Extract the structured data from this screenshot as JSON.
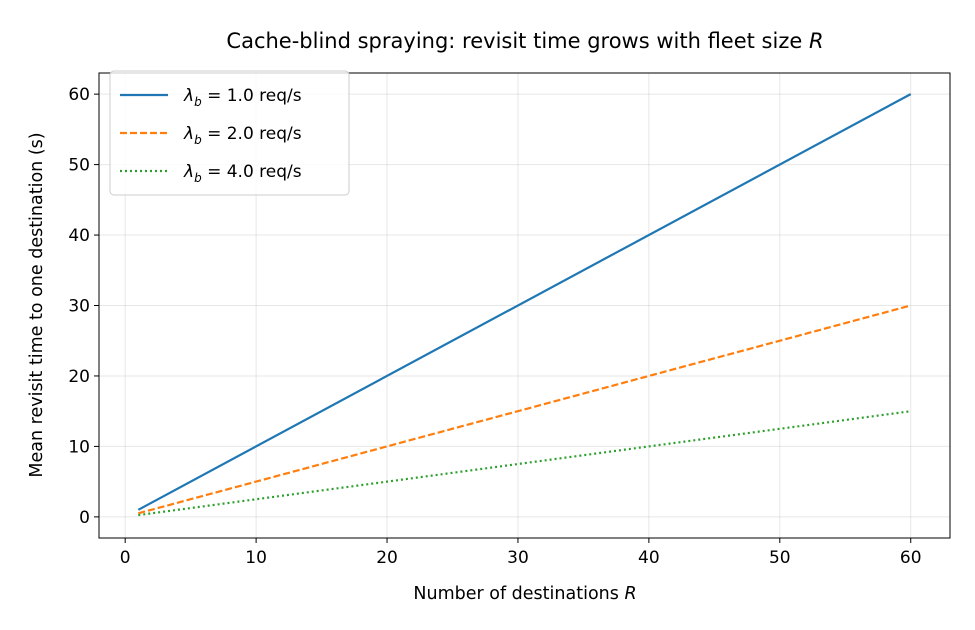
{
  "chart_data": {
    "type": "line",
    "title": "Cache-blind spraying: revisit time grows with fleet size",
    "title_var": "R",
    "xlabel": "Number of destinations",
    "xlabel_var": "R",
    "ylabel": "Mean revisit time to one destination (s)",
    "xlim": [
      -2,
      63
    ],
    "ylim": [
      -3,
      63
    ],
    "xticks": [
      0,
      10,
      20,
      30,
      40,
      50,
      60
    ],
    "yticks": [
      0,
      10,
      20,
      30,
      40,
      50,
      60
    ],
    "grid": true,
    "legend_position": "top-left",
    "x": [
      1,
      60
    ],
    "series": [
      {
        "name_symbol": "λ",
        "name_sub": "b",
        "name_rest": " = 1.0 req/s",
        "values": [
          1.0,
          60.0
        ],
        "color": "#1f77b4",
        "style": "solid"
      },
      {
        "name_symbol": "λ",
        "name_sub": "b",
        "name_rest": " = 2.0 req/s",
        "values": [
          0.5,
          30.0
        ],
        "color": "#ff7f0e",
        "style": "dashed"
      },
      {
        "name_symbol": "λ",
        "name_sub": "b",
        "name_rest": " = 4.0 req/s",
        "values": [
          0.25,
          15.0
        ],
        "color": "#2ca02c",
        "style": "dotted"
      }
    ]
  }
}
